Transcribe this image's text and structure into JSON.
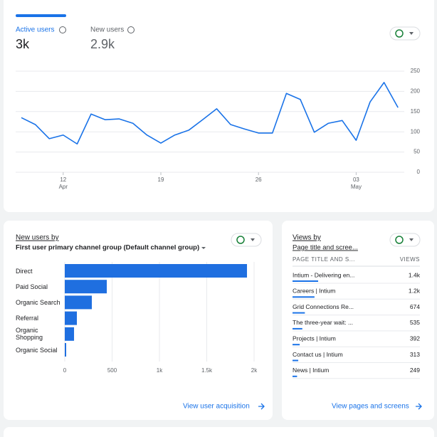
{
  "metrics": [
    {
      "label": "Active users",
      "value": "3k"
    },
    {
      "label": "New users",
      "value": "2.9k"
    }
  ],
  "chart_data": [
    {
      "type": "line",
      "categories": [
        null,
        null,
        null,
        "12",
        null,
        null,
        null,
        null,
        null,
        null,
        "19",
        null,
        null,
        null,
        null,
        null,
        null,
        "26",
        null,
        null,
        null,
        null,
        null,
        null,
        "03",
        null,
        null,
        null
      ],
      "month_labels": [
        null,
        null,
        null,
        "Apr",
        null,
        null,
        null,
        null,
        null,
        null,
        null,
        null,
        null,
        null,
        null,
        null,
        null,
        null,
        null,
        null,
        null,
        null,
        null,
        null,
        "May",
        null,
        null,
        null
      ],
      "series": [
        {
          "name": "Active users",
          "color": "#1a73e8",
          "values": [
            135,
            118,
            83,
            92,
            70,
            144,
            130,
            132,
            121,
            92,
            72,
            92,
            104,
            130,
            157,
            118,
            107,
            97,
            97,
            195,
            180,
            99,
            121,
            128,
            79,
            174,
            222,
            160
          ]
        }
      ],
      "ylim": [
        0,
        250
      ],
      "yticks": [
        0,
        50,
        100,
        150,
        200,
        250
      ],
      "grid": true
    },
    {
      "type": "hbar",
      "title": "New users by",
      "subtitle": "First user primary channel group (Default channel group)",
      "categories": [
        "Direct",
        "Paid Social",
        "Organic Search",
        "Referral",
        "Organic Shopping",
        "Organic Social"
      ],
      "values": [
        1925,
        444,
        286,
        128,
        98,
        15
      ],
      "color": "#1f6fe0",
      "xlim": [
        0,
        2000
      ],
      "xticks": [
        0,
        500,
        {
          "value": 1000,
          "label": "1k"
        },
        {
          "value": 1500,
          "label": "1.5k"
        },
        {
          "value": 2000,
          "label": "2k"
        }
      ],
      "grid": true,
      "link": "View user acquisition"
    }
  ],
  "pages_card": {
    "title": "Views by",
    "subtitle": "Page title and scree...",
    "columns": [
      "PAGE TITLE AND S...",
      "VIEWS"
    ],
    "rows": [
      {
        "title": "Intium - Delivering en...",
        "views": 1400,
        "views_label": "1.4k"
      },
      {
        "title": "Careers | Intium",
        "views": 1200,
        "views_label": "1.2k"
      },
      {
        "title": "Grid Connections Re...",
        "views": 674,
        "views_label": "674"
      },
      {
        "title": "The three-year wait: ...",
        "views": 535,
        "views_label": "535"
      },
      {
        "title": "Projects | Intium",
        "views": 392,
        "views_label": "392"
      },
      {
        "title": "Contact us | Intium",
        "views": 313,
        "views_label": "313"
      },
      {
        "title": "News | Intium",
        "views": 249,
        "views_label": "249"
      }
    ],
    "link": "View pages and screens"
  }
}
